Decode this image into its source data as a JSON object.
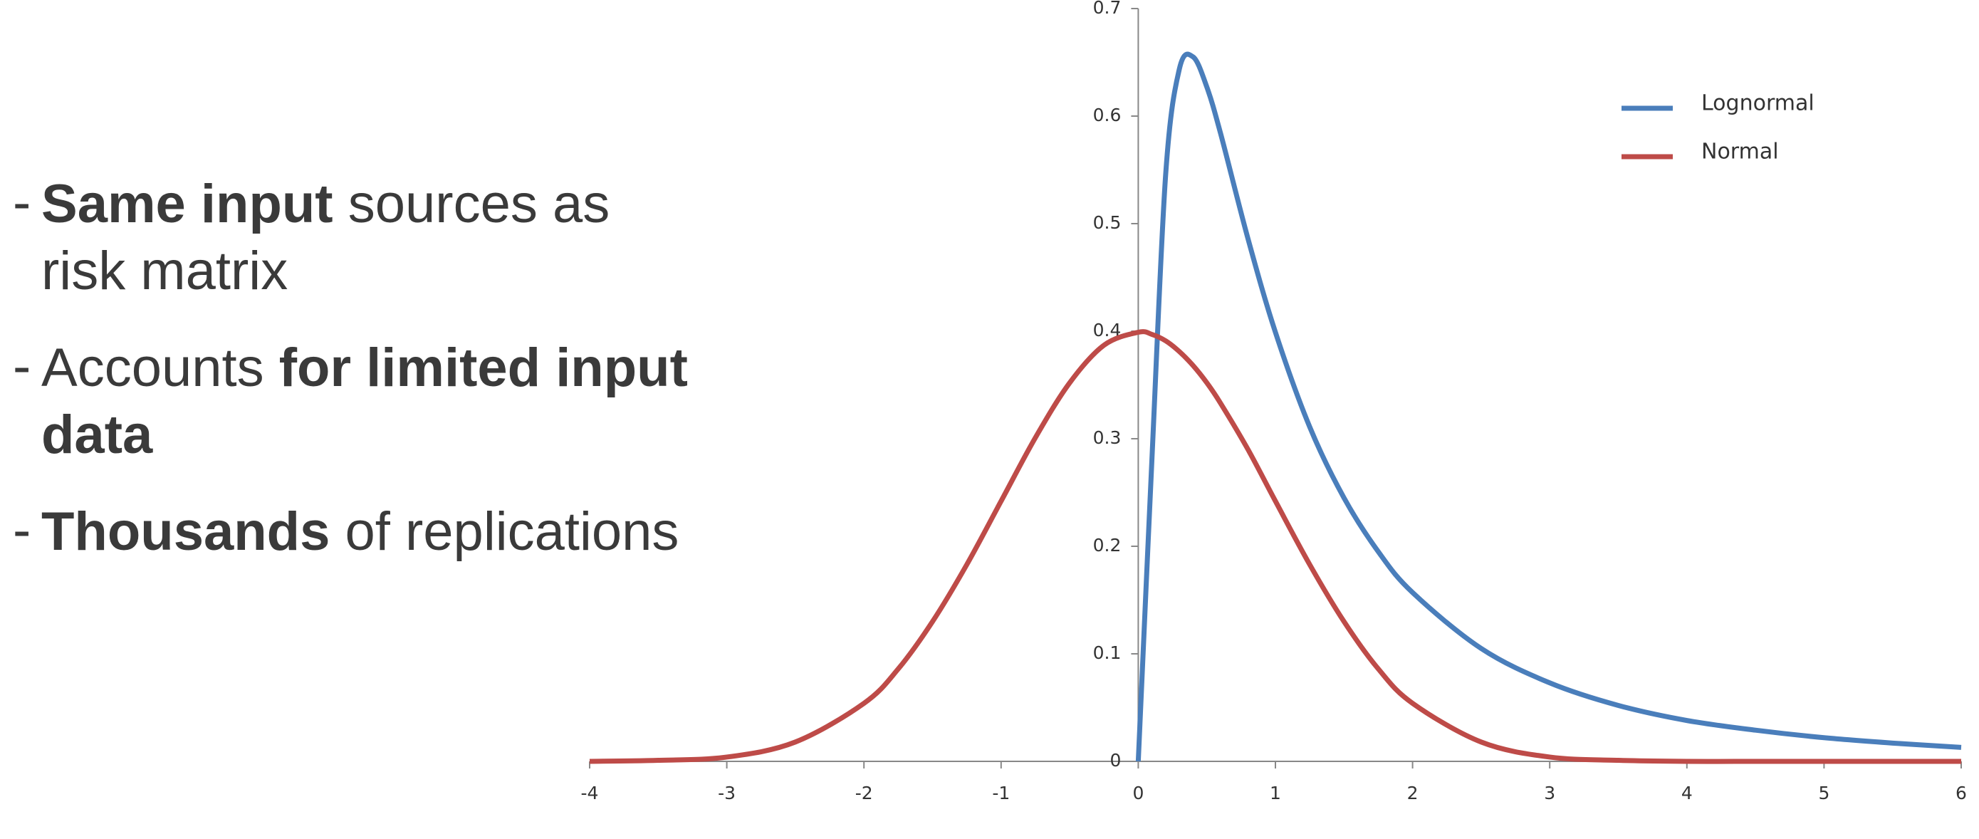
{
  "bullets": [
    {
      "lines": [
        [
          {
            "text": "Same input",
            "bold": true
          },
          {
            "text": " sources as",
            "bold": false
          }
        ],
        [
          {
            "text": "risk matrix",
            "bold": false
          }
        ]
      ]
    },
    {
      "lines": [
        [
          {
            "text": "Accounts ",
            "bold": false
          },
          {
            "text": "for limited input",
            "bold": true
          }
        ],
        [
          {
            "text": "data",
            "bold": true
          }
        ]
      ]
    },
    {
      "lines": [
        [
          {
            "text": "Thousands",
            "bold": true
          },
          {
            "text": " of replications",
            "bold": false
          }
        ]
      ]
    }
  ],
  "chart_data": {
    "type": "line",
    "x": [
      -4,
      -3.5,
      -3,
      -2.5,
      -2,
      -1.75,
      -1.5,
      -1.25,
      -1,
      -0.75,
      -0.5,
      -0.25,
      0,
      0.1,
      0.2,
      0.3,
      0.4,
      0.5,
      0.6,
      0.8,
      1,
      1.25,
      1.5,
      1.75,
      2,
      2.5,
      3,
      3.5,
      4,
      4.5,
      5,
      5.5,
      6
    ],
    "series": [
      {
        "name": "Lognormal",
        "color": "#4a7ebb",
        "values": [
          null,
          null,
          null,
          null,
          null,
          null,
          null,
          null,
          null,
          null,
          null,
          null,
          0,
          0.282,
          0.546,
          0.644,
          0.655,
          0.627,
          0.584,
          0.486,
          0.399,
          0.311,
          0.245,
          0.195,
          0.157,
          0.105,
          0.073,
          0.052,
          0.038,
          0.029,
          0.022,
          0.017,
          0.013
        ]
      },
      {
        "name": "Normal",
        "color": "#be4b48",
        "values": [
          0.0,
          0.001,
          0.004,
          0.018,
          0.054,
          0.086,
          0.13,
          0.183,
          0.242,
          0.301,
          0.352,
          0.387,
          0.399,
          0.397,
          0.391,
          0.381,
          0.368,
          0.352,
          0.333,
          0.29,
          0.242,
          0.183,
          0.13,
          0.086,
          0.054,
          0.018,
          0.004,
          0.001,
          0.0,
          0.0,
          0.0,
          0.0,
          0.0
        ]
      }
    ],
    "xlim": [
      -4,
      6
    ],
    "xticks": [
      -4,
      -3,
      -2,
      -1,
      0,
      1,
      2,
      3,
      4,
      5,
      6
    ],
    "ylim": [
      0,
      0.7
    ],
    "yticks": [
      0,
      0.1,
      0.2,
      0.3,
      0.4,
      0.5,
      0.6,
      0.7
    ],
    "legend": "upper-right",
    "grid": false
  }
}
